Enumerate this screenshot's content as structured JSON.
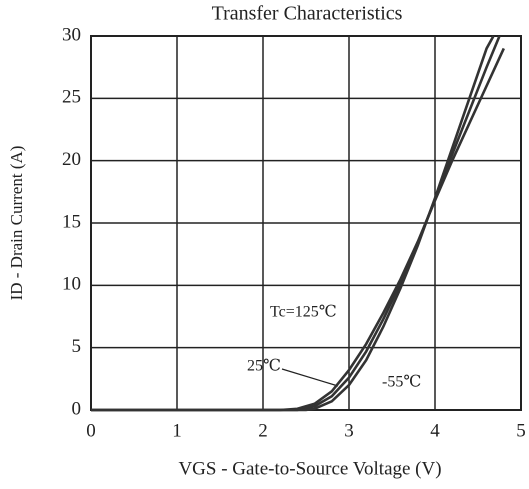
{
  "chart_data": {
    "type": "line",
    "title": "Transfer Characteristics",
    "xlabel": "VGS - Gate-to-Source  Voltage (V)",
    "ylabel": "ID - Drain Current (A)",
    "xlim": [
      0,
      5
    ],
    "xticks": [
      0,
      1,
      2,
      3,
      4,
      5
    ],
    "ylim": [
      0,
      30
    ],
    "yticks": [
      0,
      5,
      10,
      15,
      20,
      25,
      30
    ],
    "grid": true,
    "series": [
      {
        "name": "Tc=125℃",
        "color": "#333333",
        "x": [
          0,
          1,
          2,
          2.2,
          2.4,
          2.6,
          2.8,
          3.0,
          3.2,
          3.4,
          3.6,
          3.8,
          4.0,
          4.2,
          4.4,
          4.6,
          4.8
        ],
        "values": [
          0,
          0,
          0,
          0,
          0.1,
          0.5,
          1.5,
          3.2,
          5.3,
          7.8,
          10.5,
          13.5,
          16.8,
          20,
          23,
          26,
          29
        ]
      },
      {
        "name": "25℃",
        "color": "#333333",
        "x": [
          0,
          1,
          2,
          2.4,
          2.6,
          2.8,
          3.0,
          3.2,
          3.4,
          3.6,
          3.8,
          4.0,
          4.2,
          4.4,
          4.6,
          4.75
        ],
        "values": [
          0,
          0,
          0,
          0,
          0.3,
          1.1,
          2.6,
          4.7,
          7.3,
          10.2,
          13.4,
          16.9,
          20.5,
          24,
          27.5,
          30
        ]
      },
      {
        "name": "-55℃",
        "color": "#333333",
        "x": [
          0,
          1,
          2,
          2.5,
          2.6,
          2.8,
          3.0,
          3.2,
          3.4,
          3.6,
          3.8,
          4.0,
          4.2,
          4.4,
          4.6,
          4.68
        ],
        "values": [
          0,
          0,
          0,
          0,
          0.1,
          0.7,
          2.0,
          4.0,
          6.7,
          9.8,
          13.2,
          17,
          21,
          25,
          29,
          30
        ]
      }
    ]
  }
}
